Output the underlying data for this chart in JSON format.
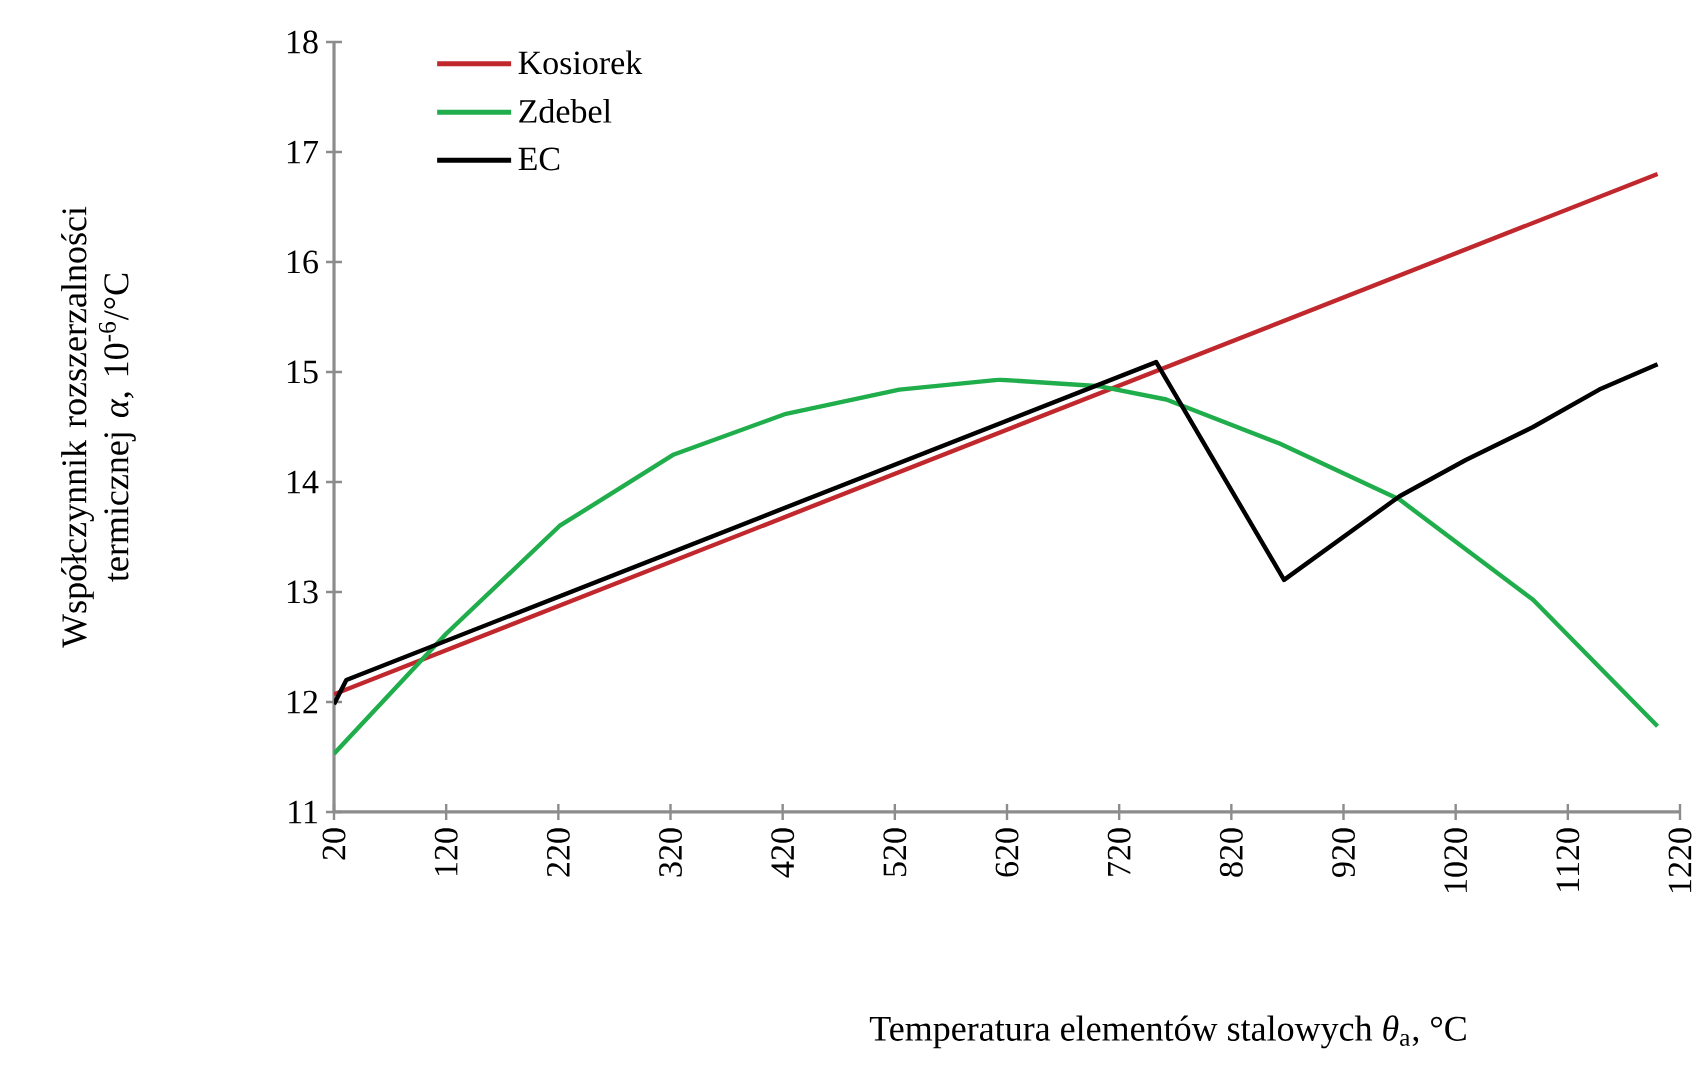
{
  "chart_data": {
    "type": "line",
    "xlabel": "Temperatura elementów stalowych *θ*$_{a}$, °C",
    "ylabel": "Współczynnik rozszerzalności termicznej *α*, 10$^{-6}$/°C",
    "xlim": [
      20,
      1220
    ],
    "xticks": [
      20,
      120,
      220,
      320,
      420,
      520,
      620,
      720,
      820,
      920,
      1020,
      1120,
      1220
    ],
    "ylim": [
      11,
      18
    ],
    "yticks": [
      11,
      12,
      13,
      14,
      15,
      16,
      17,
      18
    ],
    "grid": false,
    "legend": "top left",
    "line_style": "solid",
    "series": [
      {
        "name": "Kosiorek",
        "color": "#c0282d",
        "x": [
          20,
          1200
        ],
        "values": [
          12.07,
          16.8
        ]
      },
      {
        "name": "Zdebel",
        "color": "#1fae4b",
        "x": [
          20,
          120,
          221,
          323,
          423,
          524,
          614,
          703,
          762,
          863,
          970,
          1089,
          1200
        ],
        "values": [
          11.53,
          12.62,
          13.6,
          14.25,
          14.62,
          14.84,
          14.93,
          14.87,
          14.75,
          14.35,
          13.84,
          12.93,
          11.78
        ]
      },
      {
        "name": "EC",
        "color": "#000000",
        "x": [
          20,
          31,
          753,
          867,
          970,
          1029,
          1089,
          1148,
          1200
        ],
        "values": [
          11.98,
          12.2,
          15.09,
          13.11,
          13.87,
          14.2,
          14.5,
          14.84,
          15.07
        ]
      }
    ]
  }
}
